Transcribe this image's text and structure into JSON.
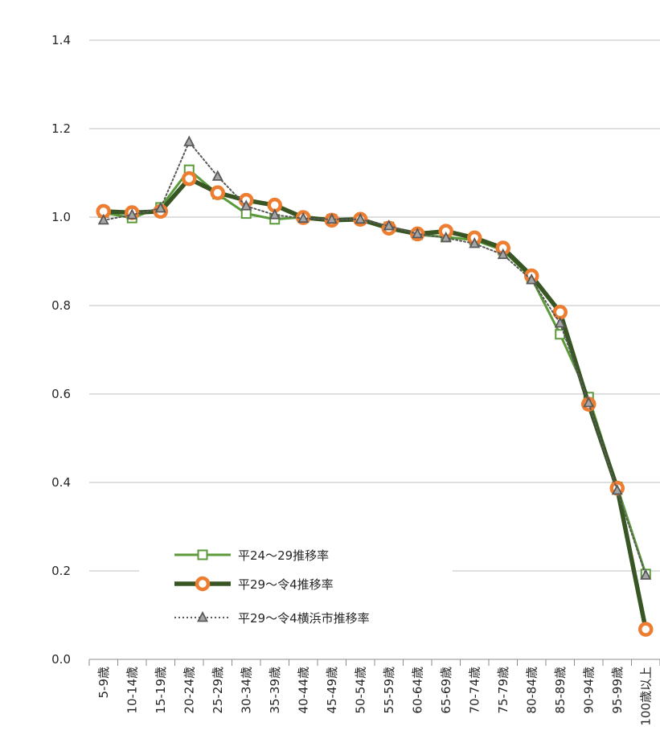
{
  "chart_data": {
    "type": "line",
    "title": "",
    "xlabel": "",
    "ylabel": "",
    "ylim": [
      0,
      1.4
    ],
    "yticks": [
      "0.0",
      "0.2",
      "0.4",
      "0.6",
      "0.8",
      "1.0",
      "1.2",
      "1.4"
    ],
    "grid": "horizontal",
    "legend_position": "bottom-left-inside",
    "categories": [
      "5-9歳",
      "10-14歳",
      "15-19歳",
      "20-24歳",
      "25-29歳",
      "30-34歳",
      "35-39歳",
      "40-44歳",
      "45-49歳",
      "50-54歳",
      "55-59歳",
      "60-64歳",
      "65-69歳",
      "70-74歳",
      "75-79歳",
      "80-84歳",
      "85-89歳",
      "90-94歳",
      "95-99歳",
      "100歳以上"
    ],
    "series": [
      {
        "name": "平24～29推移率",
        "color": "#5a9a3a",
        "marker": "square",
        "line_style": "solid",
        "values": [
          1.01,
          0.998,
          1.022,
          1.107,
          1.052,
          1.008,
          0.995,
          1.0,
          0.995,
          0.995,
          0.978,
          0.96,
          0.955,
          0.948,
          0.925,
          0.862,
          0.735,
          0.593,
          0.39,
          0.193
        ]
      },
      {
        "name": "平29～令4推移率",
        "color": "#375623",
        "marker_color": "#ed7d31",
        "marker": "circle",
        "line_style": "solid-thick",
        "values": [
          1.013,
          1.01,
          1.013,
          1.087,
          1.055,
          1.038,
          1.027,
          0.999,
          0.993,
          0.995,
          0.975,
          0.962,
          0.968,
          0.953,
          0.93,
          0.867,
          0.785,
          0.577,
          0.387,
          0.068
        ]
      },
      {
        "name": "平29～令4横浜市推移率",
        "color": "#595959",
        "marker": "triangle",
        "line_style": "dotted",
        "values": [
          0.993,
          1.005,
          1.02,
          1.17,
          1.092,
          1.025,
          1.005,
          0.997,
          0.995,
          0.995,
          0.98,
          0.962,
          0.953,
          0.94,
          0.915,
          0.858,
          0.76,
          0.58,
          0.382,
          0.19
        ]
      }
    ]
  }
}
